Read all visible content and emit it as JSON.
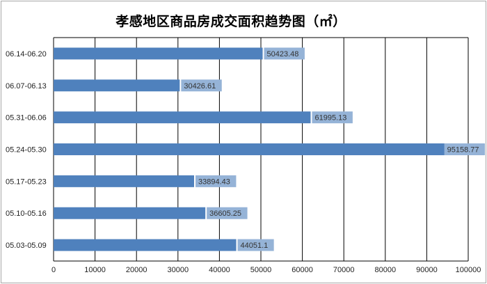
{
  "chart_data": {
    "type": "bar",
    "orientation": "horizontal",
    "title": "孝感地区商品房成交面积趋势图（㎡）",
    "categories": [
      "05.03-05.09",
      "05.10-05.16",
      "05.17-05.23",
      "05.24-05.30",
      "05.31-06.06",
      "06.07-06.13",
      "06.14-06.20"
    ],
    "values": [
      44051.1,
      36605.25,
      33894.43,
      95158.77,
      61995.13,
      30426.61,
      50423.48
    ],
    "data_labels": [
      "44051.1",
      "36605.25",
      "33894.43",
      "95158.77",
      "61995.13",
      "30426.61",
      "50423.48"
    ],
    "xticks": [
      "0",
      "10000",
      "20000",
      "30000",
      "40000",
      "50000",
      "60000",
      "70000",
      "80000",
      "90000",
      "100000"
    ],
    "xlim": [
      0,
      100000
    ],
    "xlabel": "",
    "ylabel": "",
    "grid": true,
    "legend": "none"
  },
  "colors": {
    "bar": "#4f81bd",
    "label_bg": "#95b3d7",
    "grid": "#000000"
  }
}
